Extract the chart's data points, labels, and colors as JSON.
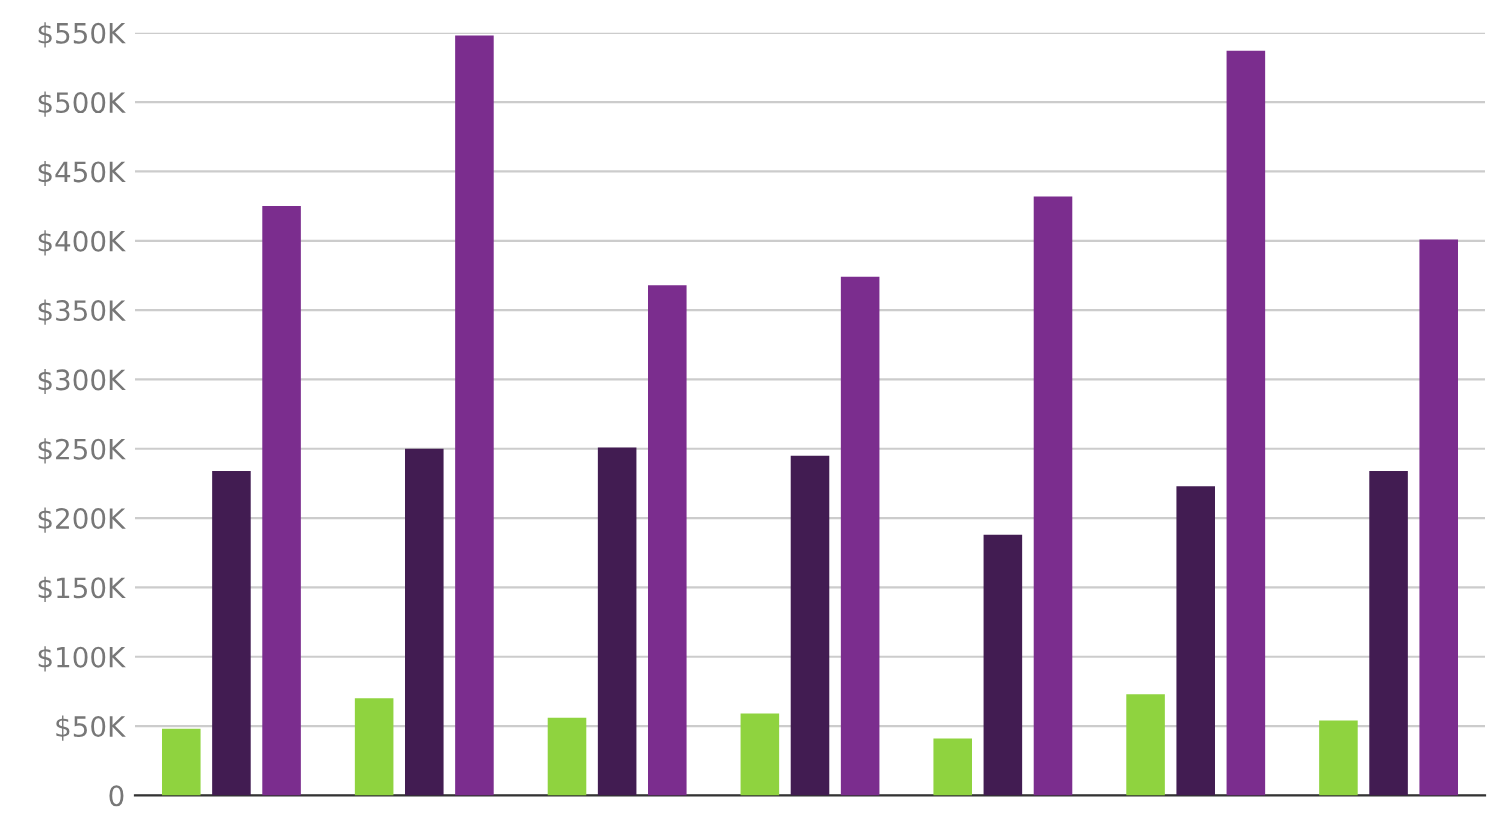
{
  "chart_data": {
    "type": "bar",
    "categories": [
      null,
      null,
      null,
      null,
      null,
      null,
      null
    ],
    "series": [
      {
        "color": "#8fd33f",
        "values": [
          48,
          70,
          56,
          59,
          41,
          73,
          54
        ]
      },
      {
        "color": "#421c52",
        "values": [
          234,
          250,
          251,
          245,
          188,
          223,
          234
        ]
      },
      {
        "color": "#7b2d8e",
        "values": [
          425,
          548,
          368,
          374,
          432,
          537,
          401
        ]
      }
    ],
    "ylim": [
      0,
      550
    ],
    "yticks": [
      {
        "value": 0,
        "label": "0"
      },
      {
        "value": 50,
        "label": "$50K"
      },
      {
        "value": 100,
        "label": "$100K"
      },
      {
        "value": 150,
        "label": "$150K"
      },
      {
        "value": 200,
        "label": "$200K"
      },
      {
        "value": 250,
        "label": "$250K"
      },
      {
        "value": 300,
        "label": "$300K"
      },
      {
        "value": 350,
        "label": "$350K"
      },
      {
        "value": 400,
        "label": "$400K"
      },
      {
        "value": 450,
        "label": "$450K"
      },
      {
        "value": 500,
        "label": "$500K"
      },
      {
        "value": 550,
        "label": "$550K"
      }
    ],
    "grid": "y"
  }
}
